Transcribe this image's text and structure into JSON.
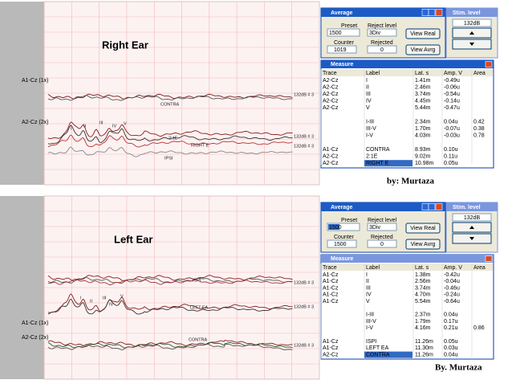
{
  "panels": [
    {
      "title": "Right Ear",
      "trace_labels": [
        "A1-Cz (1x)",
        "A2-Cz (2x)"
      ],
      "wave_labels": [
        "CONTRA",
        "132dB # 3",
        "I",
        "II",
        "III",
        "IV",
        "V",
        "2:1E",
        "RIGHT E",
        "132dB # 3",
        "132dB # 3",
        "IPSI"
      ],
      "average": {
        "title": "Average",
        "preset_label": "Preset",
        "preset": "1500",
        "reject_label": "Reject level",
        "reject": "3Div",
        "counter_label": "Counter",
        "counter": "1019",
        "rejected_label": "Rejected",
        "rejected": "0",
        "buttons": [
          "View Real",
          "View Avrg"
        ]
      },
      "stim": {
        "title": "Stim. level",
        "value": "132dB"
      },
      "measure": {
        "title": "Measure",
        "headers": [
          "Trace",
          "Label",
          "Lat. s",
          "Amp. V",
          "Area"
        ],
        "groups": [
          [
            {
              "trace": "A2-Cz",
              "label": "I",
              "lat": "1.41m",
              "amp": "-0.49u"
            },
            {
              "trace": "A2-Cz",
              "label": "II",
              "lat": "2.46m",
              "amp": "-0.06u"
            },
            {
              "trace": "A2-Cz",
              "label": "III",
              "lat": "3.74m",
              "amp": "-0.54u"
            },
            {
              "trace": "A2-Cz",
              "label": "IV",
              "lat": "4.45m",
              "amp": "-0.14u"
            },
            {
              "trace": "A2-Cz",
              "label": "V",
              "lat": "5.44m",
              "amp": "-0.47u"
            }
          ],
          [
            {
              "label": "I-III",
              "lat": "2.34m",
              "amp": "0.04u",
              "area": "0.42"
            },
            {
              "label": "III-V",
              "lat": "1.70m",
              "amp": "-0.07u",
              "area": "0.38"
            },
            {
              "label": "I-V",
              "lat": "4.03m",
              "amp": "-0.03u",
              "area": "0.78"
            }
          ],
          [
            {
              "trace": "A1-Cz",
              "label": "CONTRA",
              "lat": "8.93m",
              "amp": "0.10u"
            },
            {
              "trace": "A2-Cz",
              "label": "2:1E",
              "lat": "9.02m",
              "amp": "0.11u"
            },
            {
              "trace": "A2-Cz",
              "label": "RIGHT E",
              "lat": "10.98m",
              "amp": "0.05u"
            }
          ]
        ]
      },
      "credit": "by: Murtaza"
    },
    {
      "title": "Left Ear",
      "trace_labels": [
        "A1-Cz (1x)",
        "A2-Cz (2x)"
      ],
      "wave_labels": [
        "ISPI",
        "LEFT EA",
        "CONTRA",
        "132dB # 3",
        "132dB # 3",
        "132dB # 3",
        "I",
        "II",
        "III",
        "IV",
        "V"
      ],
      "average": {
        "title": "Average",
        "preset_label": "Preset",
        "preset": "1500",
        "reject_label": "Reject level",
        "reject": "3Div",
        "counter_label": "Counter",
        "counter": "1500",
        "rejected_label": "Rejected",
        "rejected": "0",
        "buttons": [
          "View Real",
          "View Avrg"
        ]
      },
      "stim": {
        "title": "Stim. level",
        "value": "132dB"
      },
      "measure": {
        "title": "Measure",
        "headers": [
          "Trace",
          "Label",
          "Lat. s",
          "Amp. V",
          "Area"
        ],
        "groups": [
          [
            {
              "trace": "A1-Cz",
              "label": "I",
              "lat": "1.38m",
              "amp": "-0.42u"
            },
            {
              "trace": "A1-Cz",
              "label": "II",
              "lat": "2.56m",
              "amp": "-0.04u"
            },
            {
              "trace": "A1-Cz",
              "label": "III",
              "lat": "3.74m",
              "amp": "-0.46u"
            },
            {
              "trace": "A1-Cz",
              "label": "IV",
              "lat": "4.70m",
              "amp": "-0.24u"
            },
            {
              "trace": "A1-Cz",
              "label": "V",
              "lat": "5.54m",
              "amp": "-0.64u"
            }
          ],
          [
            {
              "label": "I-III",
              "lat": "2.37m",
              "amp": "0.04u"
            },
            {
              "label": "III-V",
              "lat": "1.79m",
              "amp": "0.17u"
            },
            {
              "label": "I-V",
              "lat": "4.16m",
              "amp": "0.21u",
              "area": "0.86"
            }
          ],
          [
            {
              "trace": "A1-Cz",
              "label": "ISPI",
              "lat": "11.26m",
              "amp": "0.05u"
            },
            {
              "trace": "A1-Cz",
              "label": "LEFT EA",
              "lat": "11.30m",
              "amp": "0.03u"
            },
            {
              "trace": "A2-Cz",
              "label": "CONTRA",
              "lat": "11.26m",
              "amp": "0.04u"
            }
          ]
        ]
      },
      "credit": "By. Murtaza"
    }
  ]
}
